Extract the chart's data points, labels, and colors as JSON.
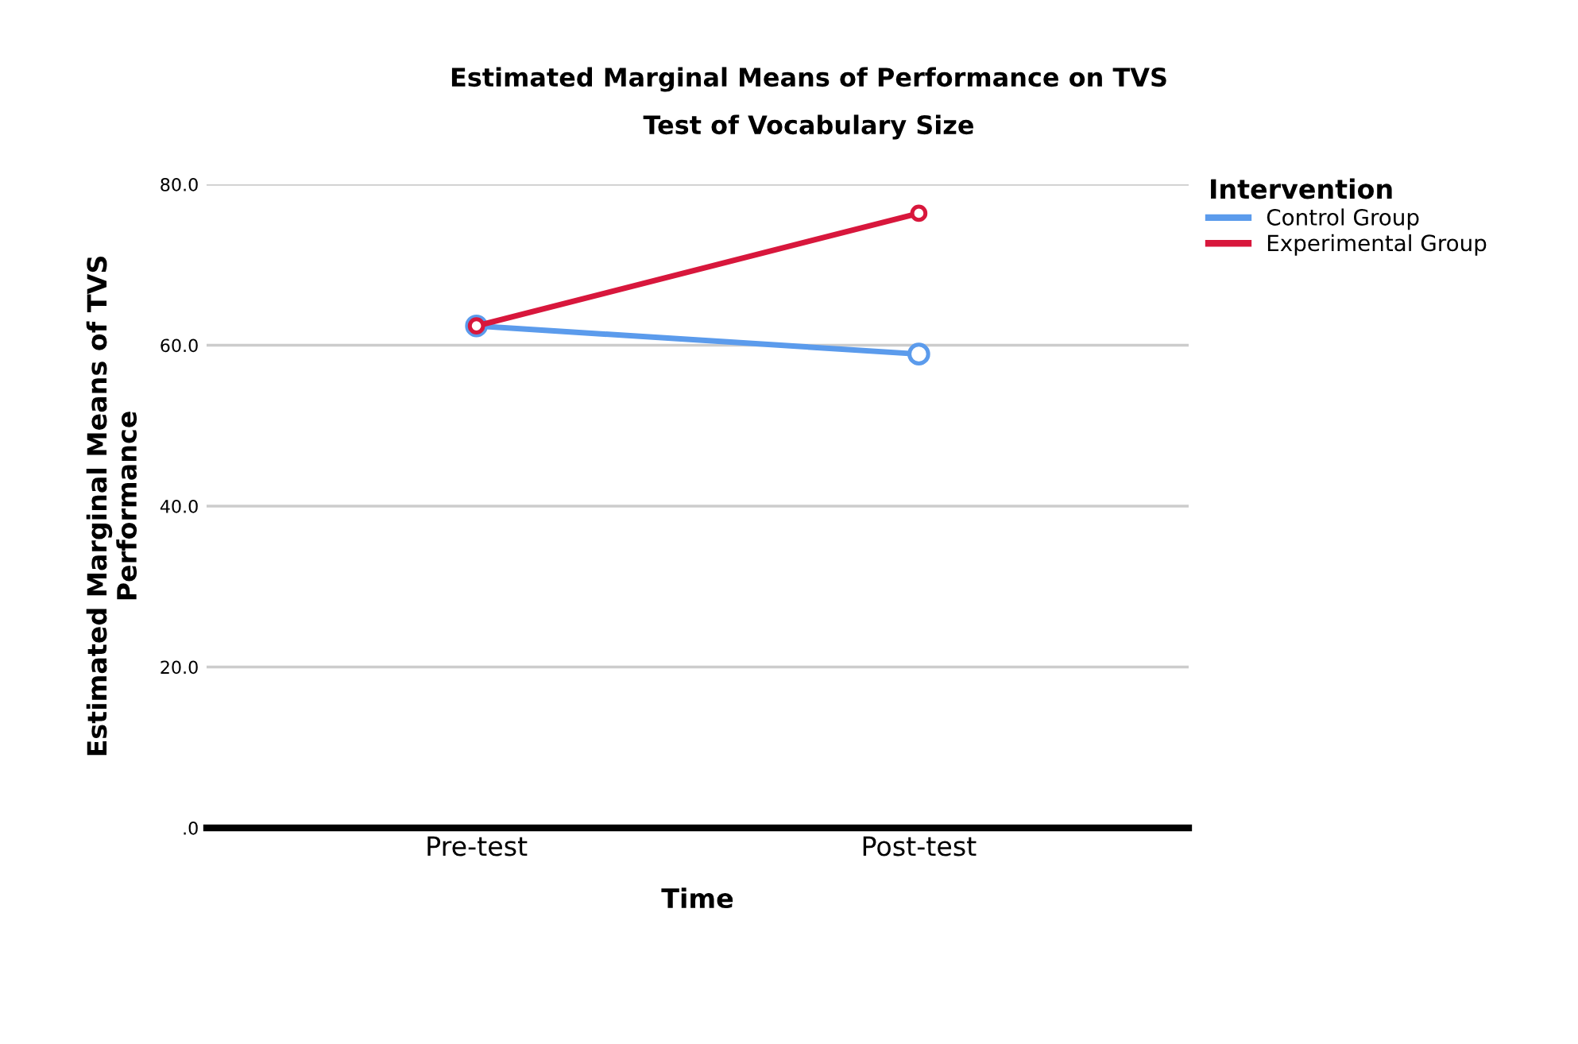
{
  "chart_data": {
    "type": "line",
    "title": "Estimated Marginal Means of Performance on TVS",
    "subtitle": "Test of Vocabulary Size",
    "xlabel": "Time",
    "ylabel": "Estimated Marginal Means of TVS\nPerformance",
    "legend_title": "Intervention",
    "categories": [
      "Pre-test",
      "Post-test"
    ],
    "series": [
      {
        "name": "Control Group",
        "color": "#5b9bec",
        "values": [
          62.4,
          58.9
        ]
      },
      {
        "name": "Experimental Group",
        "color": "#d8173c",
        "values": [
          62.4,
          76.4
        ]
      }
    ],
    "ylim": [
      0,
      80
    ],
    "yticks": [
      {
        "value": 0,
        "label": ".0"
      },
      {
        "value": 20,
        "label": "20.0"
      },
      {
        "value": 40,
        "label": "40.0"
      },
      {
        "value": 60,
        "label": "60.0"
      },
      {
        "value": 80,
        "label": "80.0"
      }
    ],
    "grid": "y",
    "legend": "top right",
    "marker": "circle",
    "line_style": "solid"
  }
}
